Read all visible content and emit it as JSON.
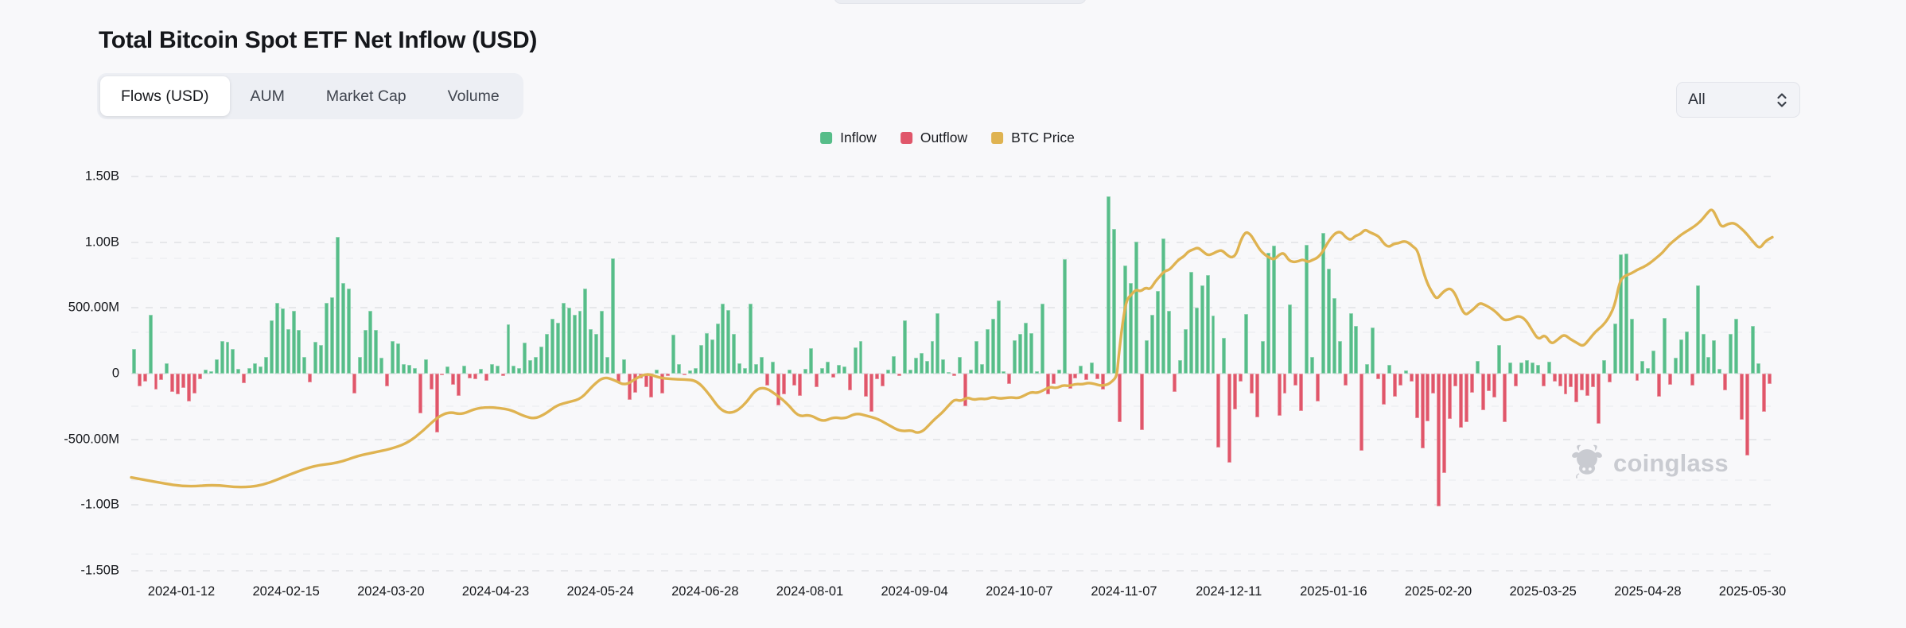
{
  "header": {
    "title": "Total Bitcoin Spot ETF Net Inflow (USD)"
  },
  "tabs": {
    "items": [
      {
        "label": "Flows (USD)",
        "active": true
      },
      {
        "label": "AUM",
        "active": false
      },
      {
        "label": "Market Cap",
        "active": false
      },
      {
        "label": "Volume",
        "active": false
      }
    ]
  },
  "range_select": {
    "value": "All"
  },
  "legend": {
    "items": [
      {
        "label": "Inflow",
        "color": "#57bd89"
      },
      {
        "label": "Outflow",
        "color": "#e0566a"
      },
      {
        "label": "BTC Price",
        "color": "#dfb351"
      }
    ]
  },
  "watermark": {
    "text": "coinglass"
  },
  "colors": {
    "background": "#f8f8fa",
    "inflow": "#57bd89",
    "outflow": "#e0566a",
    "btc_price": "#dfb351",
    "grid": "#e6e7ea",
    "axis_text": "#15171b"
  },
  "chart_data": {
    "type": "bar+line",
    "title": "Total Bitcoin Spot ETF Net Inflow (USD)",
    "grid": "dashed horizontal",
    "legend_position": "top-center",
    "y_axis": {
      "ticks": [
        "1.50B",
        "1.00B",
        "500.00M",
        "0",
        "-500.00M",
        "-1.00B",
        "-1.50B"
      ],
      "range_millions": [
        -1500,
        1500
      ]
    },
    "x_axis": {
      "tick_labels": [
        "2024-01-12",
        "2024-02-15",
        "2024-03-20",
        "2024-04-23",
        "2024-05-24",
        "2024-06-28",
        "2024-08-01",
        "2024-09-04",
        "2024-10-07",
        "2024-11-07",
        "2024-12-11",
        "2025-01-16",
        "2025-02-20",
        "2025-03-25",
        "2025-04-28",
        "2025-05-30"
      ]
    },
    "series": [
      {
        "name": "Daily net flow (USD millions, + inflow / - outflow), estimated from bars",
        "type": "bar",
        "values_m": [
          190,
          -95,
          -60,
          450,
          -120,
          -50,
          80,
          -140,
          -160,
          -110,
          -210,
          -150,
          -45,
          30,
          20,
          110,
          250,
          245,
          185,
          35,
          -70,
          45,
          80,
          55,
          130,
          405,
          540,
          495,
          340,
          480,
          330,
          125,
          -65,
          240,
          220,
          540,
          580,
          1040,
          690,
          650,
          -150,
          130,
          330,
          480,
          330,
          120,
          -95,
          250,
          230,
          75,
          65,
          40,
          -300,
          110,
          -120,
          -450,
          -15,
          55,
          -85,
          -170,
          60,
          -35,
          -40,
          35,
          -55,
          75,
          60,
          -20,
          375,
          60,
          45,
          235,
          100,
          130,
          205,
          305,
          420,
          390,
          540,
          505,
          450,
          480,
          650,
          340,
          305,
          480,
          130,
          880,
          -65,
          110,
          -200,
          -145,
          -35,
          -105,
          -180,
          30,
          -150,
          -20,
          295,
          70,
          -10,
          25,
          45,
          215,
          310,
          260,
          380,
          530,
          485,
          300,
          80,
          45,
          530,
          70,
          125,
          -90,
          90,
          -240,
          -155,
          30,
          -90,
          -170,
          35,
          195,
          -105,
          40,
          90,
          -30,
          65,
          55,
          -125,
          200,
          250,
          -175,
          -290,
          -45,
          -95,
          30,
          135,
          -20,
          405,
          30,
          120,
          160,
          95,
          250,
          460,
          110,
          15,
          -20,
          130,
          -245,
          30,
          250,
          75,
          340,
          420,
          555,
          20,
          -80,
          255,
          300,
          390,
          310,
          20,
          535,
          -155,
          -80,
          30,
          870,
          -115,
          -35,
          60,
          -50,
          85,
          -45,
          -120,
          1350,
          1100,
          -370,
          820,
          690,
          1005,
          -430,
          255,
          450,
          630,
          1030,
          480,
          -140,
          105,
          340,
          775,
          500,
          670,
          750,
          440,
          -560,
          275,
          -680,
          -275,
          -60,
          455,
          -150,
          -330,
          250,
          920,
          975,
          -320,
          -150,
          525,
          -90,
          -285,
          980,
          130,
          -210,
          1070,
          800,
          575,
          250,
          -90,
          460,
          360,
          -585,
          70,
          350,
          -45,
          -235,
          65,
          -175,
          -90,
          25,
          -60,
          -340,
          -570,
          -365,
          -150,
          -1010,
          -755,
          -345,
          -95,
          -410,
          -370,
          -145,
          95,
          -280,
          -135,
          -180,
          220,
          -370,
          85,
          -95,
          85,
          105,
          85,
          65,
          -95,
          90,
          -60,
          -95,
          -160,
          -100,
          -215,
          -125,
          -170,
          -105,
          -380,
          105,
          -65,
          380,
          910,
          915,
          420,
          -55,
          95,
          40,
          175,
          -175,
          425,
          -85,
          120,
          260,
          320,
          -90,
          670,
          305,
          130,
          255,
          35,
          -130,
          305,
          420,
          -350,
          -620,
          365,
          80,
          -290,
          -80
        ]
      },
      {
        "name": "BTC Price (right axis unlabeled; points given as [x offset px across plot, left-axis equivalent in millions] as drawn)",
        "type": "line",
        "points": [
          [
            0,
            -790
          ],
          [
            35,
            -830
          ],
          [
            70,
            -862
          ],
          [
            105,
            -845
          ],
          [
            135,
            -868
          ],
          [
            165,
            -852
          ],
          [
            200,
            -765
          ],
          [
            230,
            -700
          ],
          [
            260,
            -680
          ],
          [
            285,
            -625
          ],
          [
            305,
            -600
          ],
          [
            325,
            -575
          ],
          [
            347,
            -530
          ],
          [
            367,
            -435
          ],
          [
            385,
            -330
          ],
          [
            400,
            -290
          ],
          [
            415,
            -312
          ],
          [
            432,
            -268
          ],
          [
            447,
            -255
          ],
          [
            463,
            -262
          ],
          [
            478,
            -278
          ],
          [
            493,
            -322
          ],
          [
            507,
            -345
          ],
          [
            521,
            -305
          ],
          [
            535,
            -240
          ],
          [
            551,
            -215
          ],
          [
            566,
            -190
          ],
          [
            581,
            -85
          ],
          [
            594,
            -25
          ],
          [
            607,
            -48
          ],
          [
            621,
            -92
          ],
          [
            636,
            -30
          ],
          [
            649,
            2
          ],
          [
            664,
            -32
          ],
          [
            679,
            -42
          ],
          [
            695,
            -45
          ],
          [
            711,
            -52
          ],
          [
            726,
            -152
          ],
          [
            741,
            -282
          ],
          [
            756,
            -305
          ],
          [
            771,
            -238
          ],
          [
            785,
            -120
          ],
          [
            797,
            -105
          ],
          [
            811,
            -160
          ],
          [
            825,
            -230
          ],
          [
            839,
            -330
          ],
          [
            853,
            -310
          ],
          [
            869,
            -368
          ],
          [
            883,
            -330
          ],
          [
            897,
            -345
          ],
          [
            911,
            -300
          ],
          [
            925,
            -322
          ],
          [
            939,
            -345
          ],
          [
            953,
            -395
          ],
          [
            967,
            -440
          ],
          [
            981,
            -430
          ],
          [
            987,
            -452
          ],
          [
            995,
            -440
          ],
          [
            1003,
            -390
          ],
          [
            1011,
            -340
          ],
          [
            1019,
            -300
          ],
          [
            1027,
            -245
          ],
          [
            1035,
            -195
          ],
          [
            1043,
            -210
          ],
          [
            1051,
            -180
          ],
          [
            1059,
            -200
          ],
          [
            1067,
            -190
          ],
          [
            1075,
            -195
          ],
          [
            1083,
            -178
          ],
          [
            1091,
            -190
          ],
          [
            1099,
            -185
          ],
          [
            1107,
            -180
          ],
          [
            1115,
            -188
          ],
          [
            1123,
            -165
          ],
          [
            1131,
            -140
          ],
          [
            1139,
            -148
          ],
          [
            1147,
            -125
          ],
          [
            1155,
            -100
          ],
          [
            1163,
            -112
          ],
          [
            1171,
            -88
          ],
          [
            1179,
            -95
          ],
          [
            1187,
            -78
          ],
          [
            1195,
            -82
          ],
          [
            1203,
            -70
          ],
          [
            1211,
            -78
          ],
          [
            1219,
            -92
          ],
          [
            1227,
            -85
          ],
          [
            1233,
            -60
          ],
          [
            1239,
            -20
          ],
          [
            1241,
            120
          ],
          [
            1246,
            380
          ],
          [
            1251,
            560
          ],
          [
            1257,
            600
          ],
          [
            1263,
            640
          ],
          [
            1269,
            625
          ],
          [
            1275,
            655
          ],
          [
            1281,
            640
          ],
          [
            1287,
            700
          ],
          [
            1293,
            740
          ],
          [
            1299,
            780
          ],
          [
            1305,
            790
          ],
          [
            1311,
            830
          ],
          [
            1317,
            870
          ],
          [
            1323,
            890
          ],
          [
            1329,
            930
          ],
          [
            1335,
            945
          ],
          [
            1341,
            960
          ],
          [
            1347,
            930
          ],
          [
            1353,
            900
          ],
          [
            1359,
            910
          ],
          [
            1365,
            930
          ],
          [
            1371,
            940
          ],
          [
            1377,
            905
          ],
          [
            1383,
            880
          ],
          [
            1389,
            905
          ],
          [
            1395,
            1020
          ],
          [
            1401,
            1080
          ],
          [
            1407,
            1060
          ],
          [
            1413,
            1000
          ],
          [
            1419,
            940
          ],
          [
            1425,
            905
          ],
          [
            1431,
            880
          ],
          [
            1437,
            868
          ],
          [
            1443,
            905
          ],
          [
            1449,
            920
          ],
          [
            1455,
            862
          ],
          [
            1461,
            848
          ],
          [
            1467,
            855
          ],
          [
            1473,
            870
          ],
          [
            1479,
            848
          ],
          [
            1485,
            865
          ],
          [
            1491,
            880
          ],
          [
            1497,
            920
          ],
          [
            1503,
            985
          ],
          [
            1509,
            1040
          ],
          [
            1515,
            1075
          ],
          [
            1521,
            1078
          ],
          [
            1527,
            1035
          ],
          [
            1533,
            1015
          ],
          [
            1539,
            1050
          ],
          [
            1545,
            1060
          ],
          [
            1551,
            1098
          ],
          [
            1557,
            1075
          ],
          [
            1563,
            1060
          ],
          [
            1569,
            1040
          ],
          [
            1575,
            985
          ],
          [
            1581,
            962
          ],
          [
            1587,
            988
          ],
          [
            1593,
            992
          ],
          [
            1599,
            1008
          ],
          [
            1605,
            1000
          ],
          [
            1611,
            968
          ],
          [
            1617,
            940
          ],
          [
            1623,
            800
          ],
          [
            1629,
            690
          ],
          [
            1635,
            620
          ],
          [
            1641,
            565
          ],
          [
            1647,
            608
          ],
          [
            1653,
            640
          ],
          [
            1659,
            648
          ],
          [
            1665,
            600
          ],
          [
            1671,
            505
          ],
          [
            1677,
            445
          ],
          [
            1683,
            470
          ],
          [
            1689,
            500
          ],
          [
            1695,
            538
          ],
          [
            1701,
            525
          ],
          [
            1707,
            505
          ],
          [
            1713,
            482
          ],
          [
            1719,
            448
          ],
          [
            1725,
            408
          ],
          [
            1731,
            408
          ],
          [
            1737,
            422
          ],
          [
            1743,
            438
          ],
          [
            1749,
            428
          ],
          [
            1755,
            392
          ],
          [
            1761,
            330
          ],
          [
            1769,
            255
          ],
          [
            1777,
            300
          ],
          [
            1785,
            222
          ],
          [
            1793,
            258
          ],
          [
            1801,
            300
          ],
          [
            1809,
            262
          ],
          [
            1817,
            235
          ],
          [
            1825,
            205
          ],
          [
            1833,
            262
          ],
          [
            1841,
            322
          ],
          [
            1849,
            360
          ],
          [
            1857,
            420
          ],
          [
            1865,
            520
          ],
          [
            1871,
            700
          ],
          [
            1877,
            744
          ],
          [
            1885,
            760
          ],
          [
            1893,
            790
          ],
          [
            1901,
            810
          ],
          [
            1909,
            840
          ],
          [
            1917,
            880
          ],
          [
            1925,
            920
          ],
          [
            1933,
            980
          ],
          [
            1941,
            1020
          ],
          [
            1949,
            1060
          ],
          [
            1957,
            1090
          ],
          [
            1965,
            1120
          ],
          [
            1973,
            1160
          ],
          [
            1981,
            1220
          ],
          [
            1987,
            1258
          ],
          [
            1993,
            1190
          ],
          [
            1999,
            1110
          ],
          [
            2007,
            1140
          ],
          [
            2015,
            1148
          ],
          [
            2023,
            1110
          ],
          [
            2031,
            1062
          ],
          [
            2039,
            1002
          ],
          [
            2047,
            948
          ],
          [
            2054,
            1008
          ],
          [
            2063,
            1038
          ]
        ]
      }
    ]
  }
}
